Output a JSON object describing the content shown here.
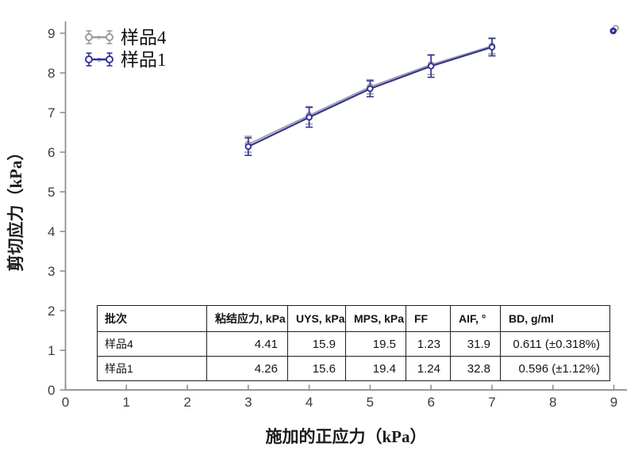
{
  "chart_data": {
    "type": "line",
    "title": "",
    "xlabel": "施加的正应力（kPa）",
    "ylabel": "剪切应力（kPa）",
    "xlim": [
      0,
      9
    ],
    "ylim": [
      0,
      9
    ],
    "xticks": [
      0,
      1,
      2,
      3,
      4,
      5,
      6,
      7,
      8,
      9
    ],
    "yticks": [
      0,
      1,
      2,
      3,
      4,
      5,
      6,
      7,
      8,
      9
    ],
    "grid": false,
    "legend_position": "top-left",
    "axis_color": "#8a8a8a",
    "tick_label_color": "#3c3c3c",
    "series": [
      {
        "name": "样品4",
        "color": "#9b9b9b",
        "legend_badge": "2",
        "x": [
          3,
          4,
          5,
          6,
          7
        ],
        "y": [
          6.2,
          6.93,
          7.65,
          8.21,
          8.68
        ],
        "yerr": [
          0.2,
          0.22,
          0.18,
          0.25,
          0.2
        ],
        "isolated_point": {
          "x": 9.03,
          "y": 9.13
        }
      },
      {
        "name": "样品1",
        "color": "#32329b",
        "legend_badge": "3",
        "x": [
          3,
          4,
          5,
          6,
          7
        ],
        "y": [
          6.14,
          6.88,
          7.6,
          8.17,
          8.65
        ],
        "yerr": [
          0.22,
          0.25,
          0.2,
          0.28,
          0.22
        ],
        "isolated_point": {
          "x": 8.99,
          "y": 9.06
        }
      }
    ]
  },
  "table": {
    "headers": [
      "批次",
      "粘结应力, kPa",
      "UYS, kPa",
      "MPS, kPa",
      "FF",
      "AIF, °",
      "BD, g/ml"
    ],
    "rows": [
      [
        "样品4",
        "4.41",
        "15.9",
        "19.5",
        "1.23",
        "31.9",
        "0.611 (±0.318%)"
      ],
      [
        "样品1",
        "4.26",
        "15.6",
        "19.4",
        "1.24",
        "32.8",
        "0.596 (±1.12%)"
      ]
    ]
  }
}
